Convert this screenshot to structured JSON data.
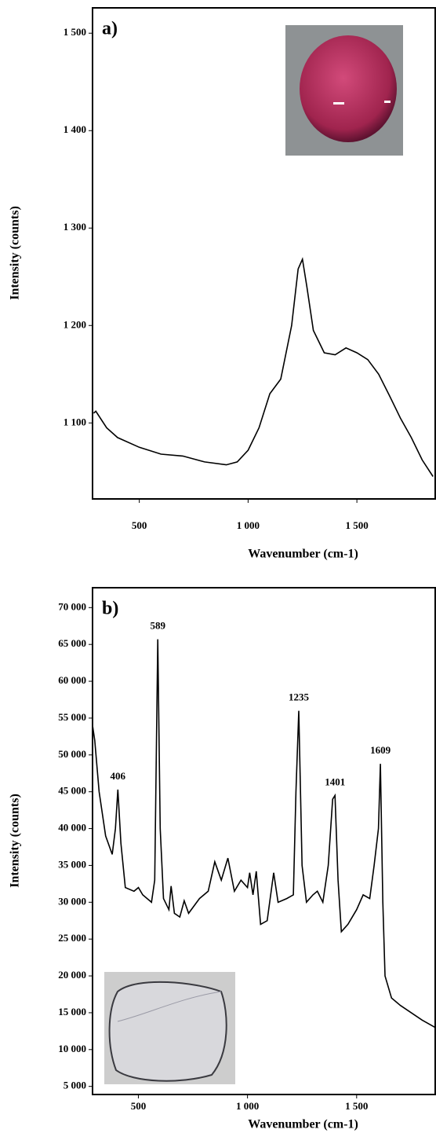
{
  "chart_data": [
    {
      "type": "line",
      "panel_label": "a)",
      "xlabel": "Wavenumber (cm-1)",
      "ylabel": "Intensity (counts)",
      "color": "#000000",
      "xlim": [
        285,
        1860
      ],
      "ylim": [
        1022,
        1526
      ],
      "xticks": [
        500,
        {
          "value": 1000,
          "label": "1 000"
        },
        {
          "value": 1500,
          "label": "1 500"
        }
      ],
      "yticks": [
        {
          "value": 1100,
          "label": "1 100"
        },
        {
          "value": 1200,
          "label": "1 200"
        },
        {
          "value": 1300,
          "label": "1 300"
        },
        {
          "value": 1400,
          "label": "1 400"
        },
        {
          "value": 1500,
          "label": "1 500"
        }
      ],
      "x": [
        290,
        300,
        350,
        400,
        500,
        600,
        700,
        800,
        900,
        950,
        1000,
        1050,
        1100,
        1150,
        1200,
        1230,
        1250,
        1270,
        1300,
        1350,
        1400,
        1450,
        1500,
        1550,
        1600,
        1650,
        1700,
        1750,
        1800,
        1850
      ],
      "values": [
        1110,
        1112,
        1095,
        1085,
        1075,
        1068,
        1066,
        1060,
        1057,
        1060,
        1072,
        1095,
        1130,
        1145,
        1200,
        1258,
        1268,
        1240,
        1195,
        1172,
        1170,
        1177,
        1172,
        1165,
        1150,
        1128,
        1105,
        1085,
        1062,
        1045
      ]
    },
    {
      "type": "line",
      "panel_label": "b)",
      "xlabel": "Wavenumber (cm-1)",
      "ylabel": "Intensity (counts)",
      "color": "#000000",
      "xlim": [
        290,
        1860
      ],
      "ylim": [
        3900,
        72700
      ],
      "xticks": [
        500,
        {
          "value": 1000,
          "label": "1 000"
        },
        {
          "value": 1500,
          "label": "1 500"
        }
      ],
      "yticks": [
        {
          "value": 5000,
          "label": "5 000"
        },
        {
          "value": 10000,
          "label": "10 000"
        },
        {
          "value": 15000,
          "label": "15 000"
        },
        {
          "value": 20000,
          "label": "20 000"
        },
        {
          "value": 25000,
          "label": "25 000"
        },
        {
          "value": 30000,
          "label": "30 000"
        },
        {
          "value": 35000,
          "label": "35 000"
        },
        {
          "value": 40000,
          "label": "40 000"
        },
        {
          "value": 45000,
          "label": "45 000"
        },
        {
          "value": 50000,
          "label": "50 000"
        },
        {
          "value": 55000,
          "label": "55 000"
        },
        {
          "value": 60000,
          "label": "60 000"
        },
        {
          "value": 65000,
          "label": "65 000"
        },
        {
          "value": 70000,
          "label": "70 000"
        }
      ],
      "annotations": [
        "406",
        "589",
        "1235",
        "1401",
        "1609"
      ],
      "x": [
        290,
        300,
        320,
        350,
        380,
        395,
        406,
        420,
        440,
        480,
        500,
        520,
        560,
        575,
        589,
        600,
        615,
        640,
        650,
        665,
        690,
        710,
        730,
        780,
        820,
        850,
        880,
        910,
        940,
        970,
        1000,
        1010,
        1025,
        1040,
        1060,
        1090,
        1120,
        1140,
        1180,
        1210,
        1222,
        1235,
        1250,
        1270,
        1300,
        1320,
        1345,
        1370,
        1390,
        1401,
        1415,
        1430,
        1460,
        1500,
        1530,
        1560,
        1580,
        1600,
        1609,
        1620,
        1630,
        1660,
        1700,
        1750,
        1800,
        1860
      ],
      "values": [
        54000,
        52000,
        45000,
        39000,
        36500,
        40000,
        45300,
        38000,
        32000,
        31500,
        32000,
        31000,
        30000,
        33000,
        65700,
        40000,
        30500,
        29000,
        32200,
        28500,
        28000,
        30200,
        28500,
        30500,
        31500,
        35500,
        33000,
        36000,
        31500,
        33000,
        32000,
        34000,
        31000,
        34200,
        27000,
        27500,
        34000,
        30000,
        30500,
        31000,
        45000,
        56000,
        35000,
        30000,
        31000,
        31500,
        30000,
        35000,
        44000,
        44500,
        33000,
        26000,
        27000,
        29000,
        31000,
        30500,
        35000,
        40000,
        48800,
        30000,
        20000,
        17000,
        16000,
        15000,
        14000,
        13000
      ]
    }
  ]
}
